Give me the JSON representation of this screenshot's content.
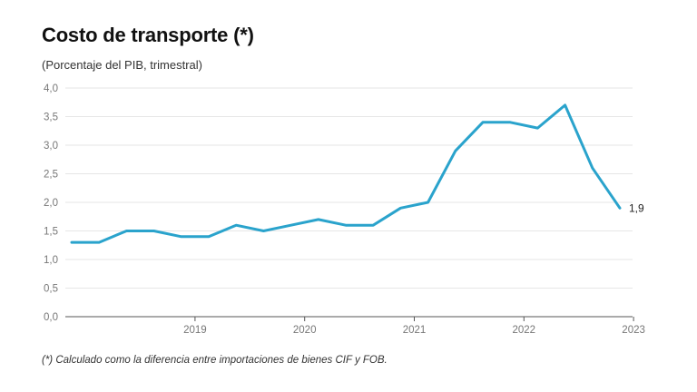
{
  "chart_data": {
    "type": "line",
    "title": "Costo de transporte (*)",
    "subtitle": "(Porcentaje del PIB, trimestral)",
    "note": "(*) Calculado como la diferencia entre importaciones de bienes CIF y FOB.",
    "xlabel": "",
    "ylabel": "",
    "ylim": [
      0,
      4
    ],
    "y_ticks": [
      "0,0",
      "0,5",
      "1,0",
      "1,5",
      "2,0",
      "2,5",
      "3,0",
      "3,5",
      "4,0"
    ],
    "y_tick_values": [
      0,
      0.5,
      1,
      1.5,
      2,
      2.5,
      3,
      3.5,
      4
    ],
    "x_tick_labels": [
      "2019",
      "2020",
      "2021",
      "2022",
      "2023"
    ],
    "grid": true,
    "line_color": "#2aa3cc",
    "series": [
      {
        "x": [
          "2018-T2",
          "2018-T3",
          "2018-T4",
          "2019-T1",
          "2019-T2",
          "2019-T3",
          "2019-T4",
          "2020-T1",
          "2020-T2",
          "2020-T3",
          "2020-T4",
          "2021-T1",
          "2021-T2",
          "2021-T3",
          "2021-T4",
          "2022-T1",
          "2022-T2",
          "2022-T3",
          "2022-T4",
          "2023-T1",
          "2023-T2"
        ],
        "values": [
          1.3,
          1.3,
          1.5,
          1.5,
          1.4,
          1.4,
          1.6,
          1.5,
          1.6,
          1.7,
          1.6,
          1.6,
          1.9,
          2.0,
          2.9,
          3.4,
          3.4,
          3.3,
          3.7,
          2.6,
          1.9
        ]
      }
    ],
    "end_label": "1,9"
  }
}
